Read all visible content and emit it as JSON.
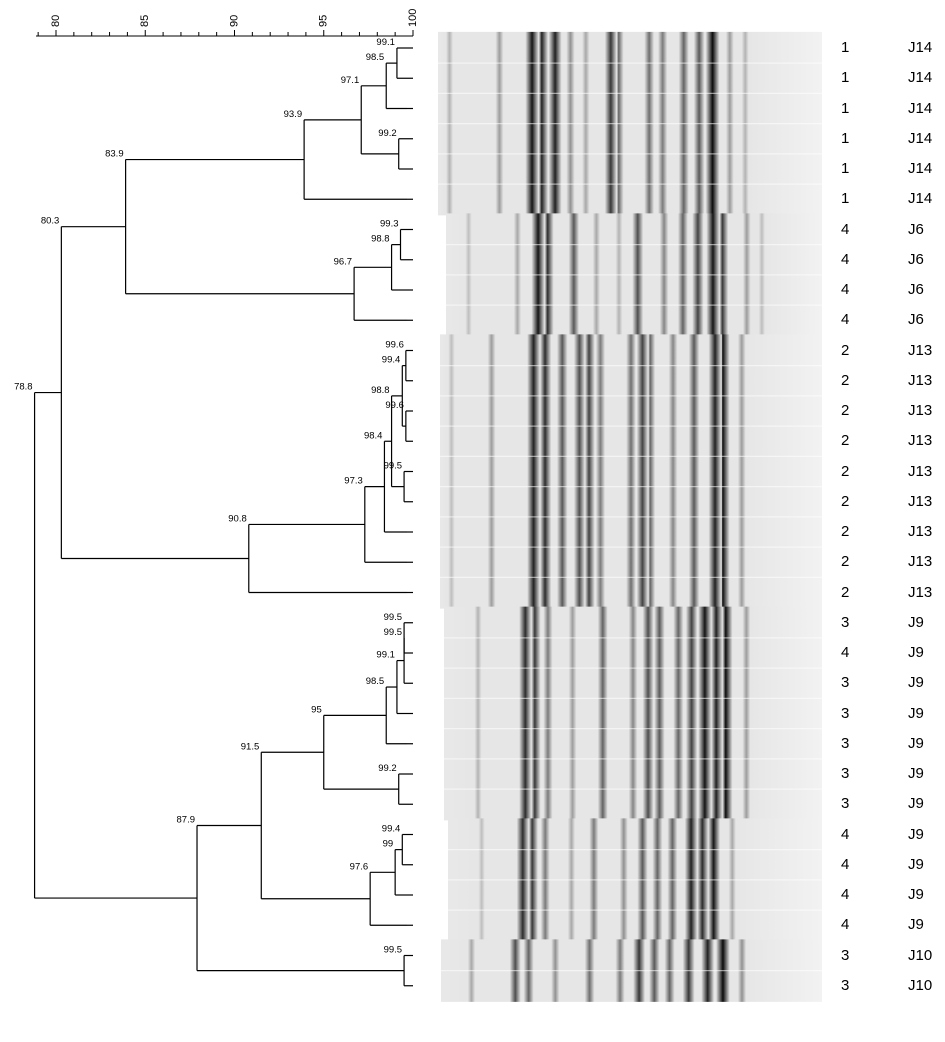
{
  "scale": {
    "ticks": [
      "80",
      "85",
      "90",
      "95",
      "100"
    ],
    "tick_values": [
      80,
      85,
      90,
      95,
      100
    ],
    "range": [
      78.8,
      100
    ]
  },
  "lanes": [
    {
      "cluster": "1",
      "sample": "J14"
    },
    {
      "cluster": "1",
      "sample": "J14"
    },
    {
      "cluster": "1",
      "sample": "J14"
    },
    {
      "cluster": "1",
      "sample": "J14"
    },
    {
      "cluster": "1",
      "sample": "J14"
    },
    {
      "cluster": "1",
      "sample": "J14"
    },
    {
      "cluster": "4",
      "sample": "J6"
    },
    {
      "cluster": "4",
      "sample": "J6"
    },
    {
      "cluster": "4",
      "sample": "J6"
    },
    {
      "cluster": "4",
      "sample": "J6"
    },
    {
      "cluster": "2",
      "sample": "J13"
    },
    {
      "cluster": "2",
      "sample": "J13"
    },
    {
      "cluster": "2",
      "sample": "J13"
    },
    {
      "cluster": "2",
      "sample": "J13"
    },
    {
      "cluster": "2",
      "sample": "J13"
    },
    {
      "cluster": "2",
      "sample": "J13"
    },
    {
      "cluster": "2",
      "sample": "J13"
    },
    {
      "cluster": "2",
      "sample": "J13"
    },
    {
      "cluster": "2",
      "sample": "J13"
    },
    {
      "cluster": "3",
      "sample": "J9"
    },
    {
      "cluster": "4",
      "sample": "J9"
    },
    {
      "cluster": "3",
      "sample": "J9"
    },
    {
      "cluster": "3",
      "sample": "J9"
    },
    {
      "cluster": "3",
      "sample": "J9"
    },
    {
      "cluster": "3",
      "sample": "J9"
    },
    {
      "cluster": "3",
      "sample": "J9"
    },
    {
      "cluster": "4",
      "sample": "J9"
    },
    {
      "cluster": "4",
      "sample": "J9"
    },
    {
      "cluster": "4",
      "sample": "J9"
    },
    {
      "cluster": "4",
      "sample": "J9"
    },
    {
      "cluster": "3",
      "sample": "J10"
    },
    {
      "cluster": "3",
      "sample": "J10"
    }
  ],
  "nodes": [
    {
      "id": "n1",
      "similarity": 99.1,
      "label": "99.1",
      "children": [
        0,
        1
      ]
    },
    {
      "id": "n2",
      "similarity": 98.5,
      "label": "98.5",
      "children": [
        "n1",
        2
      ]
    },
    {
      "id": "n3",
      "similarity": 99.2,
      "label": "99.2",
      "children": [
        3,
        4
      ]
    },
    {
      "id": "n4",
      "similarity": 97.1,
      "label": "97.1",
      "children": [
        "n2",
        "n3"
      ]
    },
    {
      "id": "n5",
      "similarity": 93.9,
      "label": "93.9",
      "children": [
        "n4",
        5
      ]
    },
    {
      "id": "n6",
      "similarity": 99.3,
      "label": "99.3",
      "children": [
        6,
        7
      ]
    },
    {
      "id": "n7",
      "similarity": 98.8,
      "label": "98.8",
      "children": [
        "n6",
        8
      ]
    },
    {
      "id": "n8",
      "similarity": 96.7,
      "label": "96.7",
      "children": [
        "n7",
        9
      ]
    },
    {
      "id": "n9",
      "similarity": 83.9,
      "label": "83.9",
      "children": [
        "n5",
        "n8"
      ]
    },
    {
      "id": "n10",
      "similarity": 99.6,
      "label": "99.6",
      "children": [
        10,
        11
      ]
    },
    {
      "id": "n11",
      "similarity": 99.6,
      "label": "99.6",
      "children": [
        12,
        13
      ]
    },
    {
      "id": "n12",
      "similarity": 99.4,
      "label": "99.4",
      "children": [
        "n10",
        "n11"
      ]
    },
    {
      "id": "n13",
      "similarity": 99.5,
      "label": "99.5",
      "children": [
        14,
        15
      ]
    },
    {
      "id": "n14",
      "similarity": 98.8,
      "label": "98.8",
      "children": [
        "n12",
        "n13"
      ]
    },
    {
      "id": "n15",
      "similarity": 98.4,
      "label": "98.4",
      "children": [
        "n14",
        16
      ]
    },
    {
      "id": "n16",
      "similarity": 97.3,
      "label": "97.3",
      "children": [
        "n15",
        17
      ]
    },
    {
      "id": "n17",
      "similarity": 90.8,
      "label": "90.8",
      "children": [
        "n16",
        18
      ]
    },
    {
      "id": "n18",
      "similarity": 80.3,
      "label": "80.3",
      "children": [
        "n9",
        "n17"
      ]
    },
    {
      "id": "n19",
      "similarity": 99.5,
      "label": "99.5",
      "children": [
        19,
        20
      ]
    },
    {
      "id": "n20",
      "similarity": 99.5,
      "label": "99.5",
      "children": [
        "n19",
        21
      ]
    },
    {
      "id": "n21",
      "similarity": 99.1,
      "label": "99.1",
      "children": [
        "n20",
        22
      ]
    },
    {
      "id": "n22",
      "similarity": 98.5,
      "label": "98.5",
      "children": [
        "n21",
        23
      ]
    },
    {
      "id": "n23",
      "similarity": 99.2,
      "label": "99.2",
      "children": [
        24,
        25
      ]
    },
    {
      "id": "n24",
      "similarity": 95,
      "label": "95",
      "children": [
        "n22",
        "n23"
      ]
    },
    {
      "id": "n25",
      "similarity": 99.4,
      "label": "99.4",
      "children": [
        26,
        27
      ]
    },
    {
      "id": "n26",
      "similarity": 99,
      "label": "99",
      "children": [
        "n25",
        28
      ]
    },
    {
      "id": "n27",
      "similarity": 97.6,
      "label": "97.6",
      "children": [
        "n26",
        29
      ]
    },
    {
      "id": "n28",
      "similarity": 91.5,
      "label": "91.5",
      "children": [
        "n24",
        "n27"
      ]
    },
    {
      "id": "n29",
      "similarity": 99.5,
      "label": "99.5",
      "children": [
        30,
        31
      ]
    },
    {
      "id": "n30",
      "similarity": 87.9,
      "label": "87.9",
      "children": [
        "n28",
        "n29"
      ]
    },
    {
      "id": "n31",
      "similarity": 78.8,
      "label": "78.8",
      "children": [
        "n18",
        "n30"
      ]
    }
  ],
  "gel_bands": [
    {
      "lanes": [
        0,
        5
      ],
      "bands": [
        [
          0.03,
          0.25
        ],
        [
          0.16,
          0.35
        ],
        [
          0.245,
          0.95
        ],
        [
          0.27,
          0.9
        ],
        [
          0.305,
          0.9
        ],
        [
          0.345,
          0.4
        ],
        [
          0.385,
          0.3
        ],
        [
          0.45,
          0.8
        ],
        [
          0.47,
          0.6
        ],
        [
          0.55,
          0.55
        ],
        [
          0.585,
          0.5
        ],
        [
          0.64,
          0.6
        ],
        [
          0.68,
          0.65
        ],
        [
          0.715,
          1.0
        ],
        [
          0.76,
          0.35
        ],
        [
          0.8,
          0.25
        ]
      ]
    },
    {
      "lanes": [
        6,
        9
      ],
      "bands": [
        [
          0.06,
          0.2
        ],
        [
          0.19,
          0.3
        ],
        [
          0.245,
          0.95
        ],
        [
          0.27,
          0.85
        ],
        [
          0.34,
          0.65
        ],
        [
          0.4,
          0.3
        ],
        [
          0.46,
          0.25
        ],
        [
          0.51,
          0.7
        ],
        [
          0.58,
          0.45
        ],
        [
          0.63,
          0.6
        ],
        [
          0.67,
          0.75
        ],
        [
          0.71,
          0.95
        ],
        [
          0.735,
          0.8
        ],
        [
          0.8,
          0.35
        ],
        [
          0.84,
          0.2
        ]
      ]
    },
    {
      "lanes": [
        10,
        18
      ],
      "bands": [
        [
          0.03,
          0.2
        ],
        [
          0.135,
          0.35
        ],
        [
          0.245,
          0.9
        ],
        [
          0.275,
          0.85
        ],
        [
          0.32,
          0.65
        ],
        [
          0.365,
          0.7
        ],
        [
          0.39,
          0.75
        ],
        [
          0.42,
          0.5
        ],
        [
          0.5,
          0.55
        ],
        [
          0.53,
          0.75
        ],
        [
          0.55,
          0.6
        ],
        [
          0.61,
          0.45
        ],
        [
          0.665,
          0.65
        ],
        [
          0.72,
          0.9
        ],
        [
          0.74,
          1.0
        ],
        [
          0.79,
          0.35
        ]
      ]
    },
    {
      "lanes": [
        19,
        25
      ],
      "bands": [
        [
          0.09,
          0.25
        ],
        [
          0.215,
          0.85
        ],
        [
          0.24,
          0.8
        ],
        [
          0.275,
          0.5
        ],
        [
          0.34,
          0.35
        ],
        [
          0.42,
          0.6
        ],
        [
          0.5,
          0.45
        ],
        [
          0.54,
          0.7
        ],
        [
          0.57,
          0.65
        ],
        [
          0.62,
          0.6
        ],
        [
          0.655,
          0.75
        ],
        [
          0.69,
          0.95
        ],
        [
          0.72,
          0.9
        ],
        [
          0.745,
          1.0
        ],
        [
          0.8,
          0.35
        ]
      ]
    },
    {
      "lanes": [
        26,
        29
      ],
      "bands": [
        [
          0.09,
          0.2
        ],
        [
          0.2,
          0.85
        ],
        [
          0.225,
          0.8
        ],
        [
          0.26,
          0.5
        ],
        [
          0.33,
          0.3
        ],
        [
          0.39,
          0.5
        ],
        [
          0.47,
          0.4
        ],
        [
          0.52,
          0.65
        ],
        [
          0.56,
          0.6
        ],
        [
          0.6,
          0.6
        ],
        [
          0.65,
          0.9
        ],
        [
          0.68,
          0.85
        ],
        [
          0.71,
          0.95
        ],
        [
          0.76,
          0.3
        ]
      ]
    },
    {
      "lanes": [
        30,
        31
      ],
      "bands": [
        [
          0.08,
          0.3
        ],
        [
          0.195,
          0.7
        ],
        [
          0.23,
          0.6
        ],
        [
          0.3,
          0.4
        ],
        [
          0.39,
          0.55
        ],
        [
          0.47,
          0.5
        ],
        [
          0.52,
          0.8
        ],
        [
          0.56,
          0.65
        ],
        [
          0.6,
          0.6
        ],
        [
          0.65,
          0.8
        ],
        [
          0.7,
          0.9
        ],
        [
          0.74,
          1.0
        ],
        [
          0.79,
          0.4
        ]
      ]
    }
  ]
}
